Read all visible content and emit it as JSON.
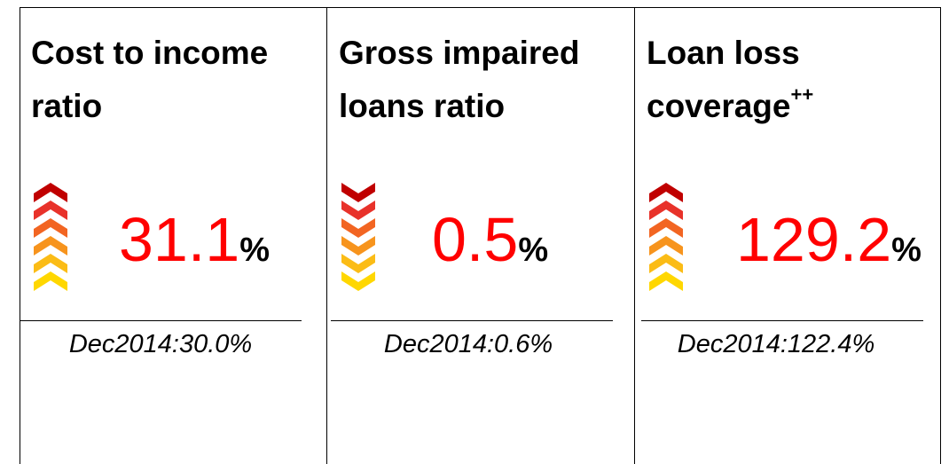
{
  "panels": [
    {
      "title": "Cost to income ratio",
      "value": "31.1",
      "unit": "%",
      "comparison": "Dec2014:30.0%"
    },
    {
      "title": "Gross impaired loans ratio",
      "value": "0.5",
      "unit": "%",
      "comparison": "Dec2014:0.6%"
    },
    {
      "title": "Loan loss coverage",
      "superscript": "++",
      "value": "129.2",
      "unit": "%",
      "comparison": "Dec2014:122.4%"
    }
  ]
}
